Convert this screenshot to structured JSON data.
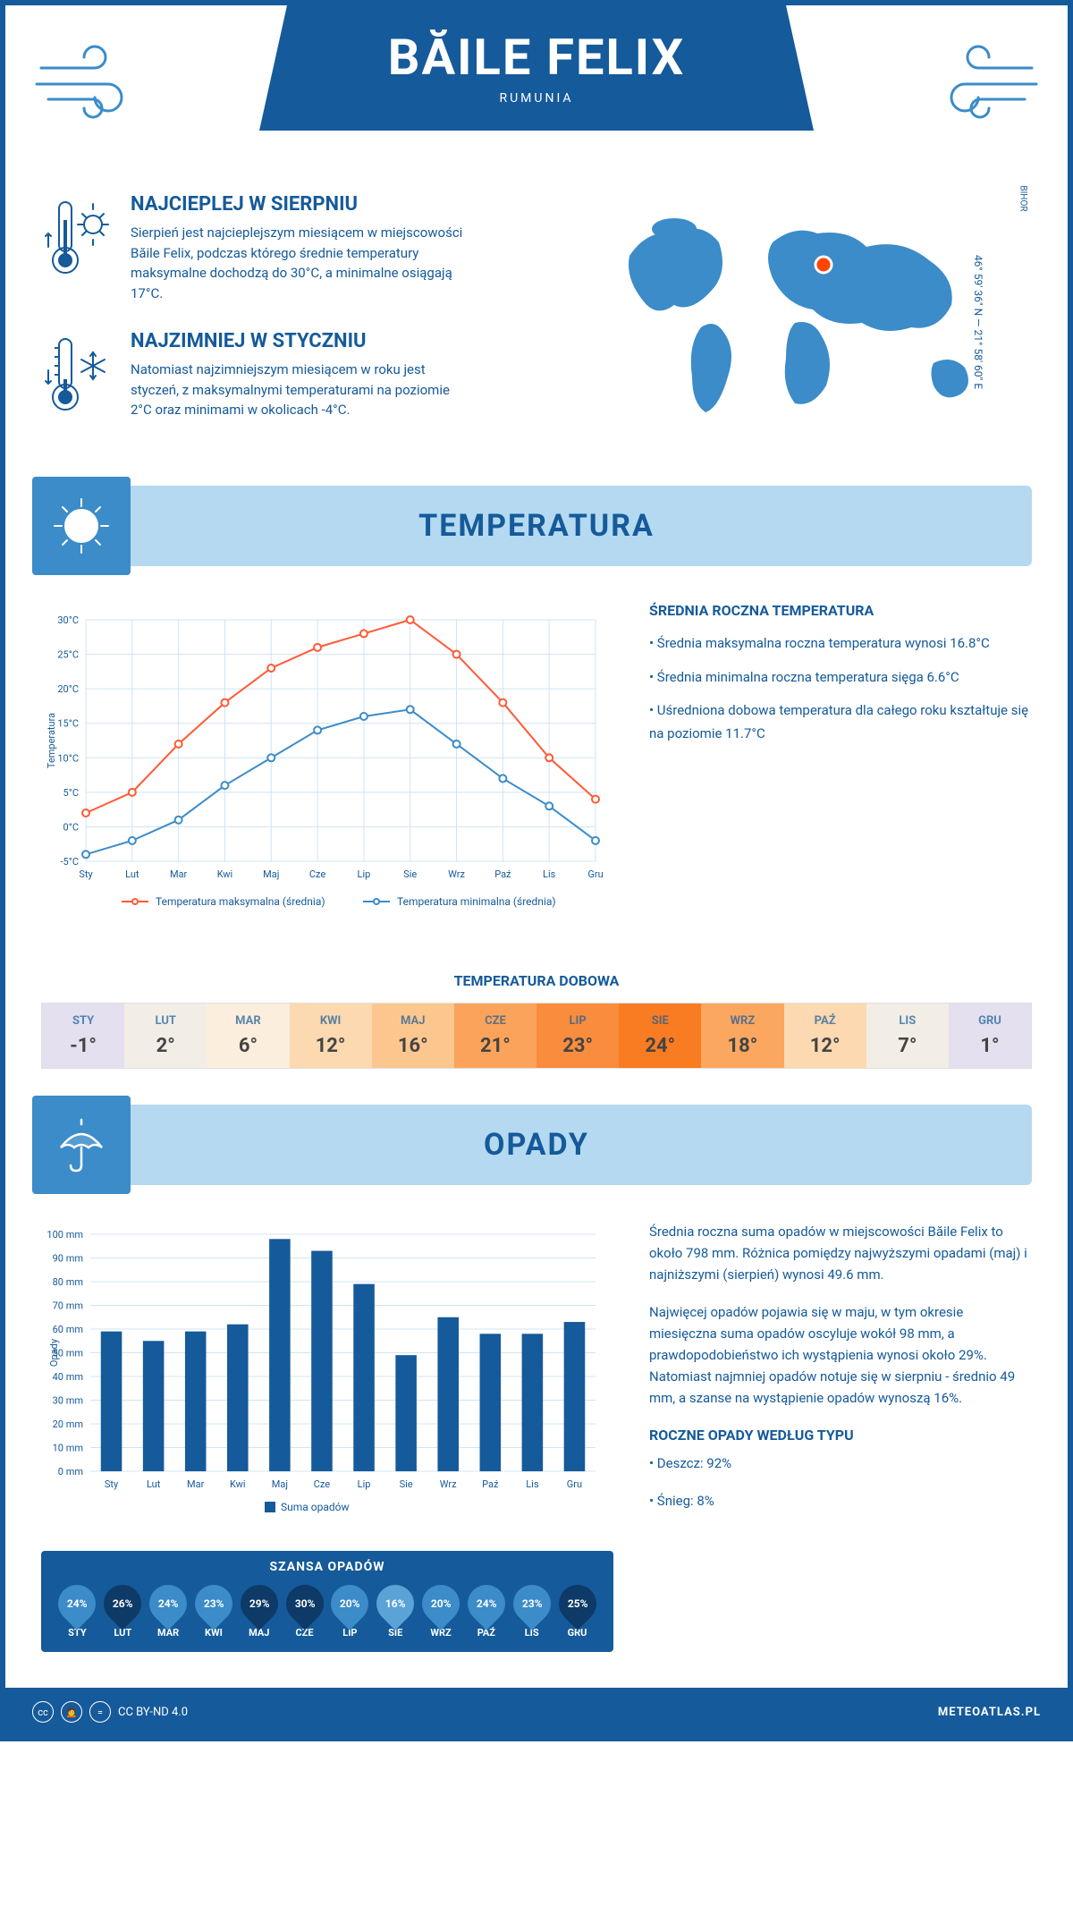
{
  "header": {
    "city": "BĂILE FELIX",
    "country": "RUMUNIA"
  },
  "intro": {
    "hot": {
      "title": "NAJCIEPLEJ W SIERPNIU",
      "text": "Sierpień jest najcieplejszym miesiącem w miejscowości Băile Felix, podczas którego średnie temperatury maksymalne dochodzą do 30°C, a minimalne osiągają 17°C."
    },
    "cold": {
      "title": "NAJZIMNIEJ W STYCZNIU",
      "text": "Natomiast najzimniejszym miesiącem w roku jest styczeń, z maksymalnymi temperaturami na poziomie 2°C oraz minimami w okolicach -4°C."
    },
    "coords": "46° 59' 36\" N — 21° 58' 60\" E",
    "region": "BIHOR"
  },
  "temp_section": {
    "title": "TEMPERATURA",
    "side_title": "ŚREDNIA ROCZNA TEMPERATURA",
    "side_b1": "• Średnia maksymalna roczna temperatura wynosi 16.8°C",
    "side_b2": "• Średnia minimalna roczna temperatura sięga 6.6°C",
    "side_b3": "• Uśredniona dobowa temperatura dla całego roku kształtuje się na poziomie 11.7°C",
    "chart": {
      "type": "line",
      "months": [
        "Sty",
        "Lut",
        "Mar",
        "Kwi",
        "Maj",
        "Cze",
        "Lip",
        "Sie",
        "Wrz",
        "Paź",
        "Lis",
        "Gru"
      ],
      "max": {
        "label": "Temperatura maksymalna (średnia)",
        "color": "#ff5a36",
        "values": [
          2,
          5,
          12,
          18,
          23,
          26,
          28,
          30,
          25,
          18,
          10,
          4
        ]
      },
      "min": {
        "label": "Temperatura minimalna (średnia)",
        "color": "#3b8cc9",
        "values": [
          -4,
          -2,
          1,
          6,
          10,
          14,
          16,
          17,
          12,
          7,
          3,
          -2
        ]
      },
      "ylabel": "Temperatura",
      "ylim": [
        -5,
        30
      ],
      "ytick_step": 5,
      "grid_color": "#d0e4f3",
      "line_width": 2,
      "marker": "circle",
      "marker_size": 4
    },
    "dobowa": {
      "title": "TEMPERATURA DOBOWA",
      "months": [
        "STY",
        "LUT",
        "MAR",
        "KWI",
        "MAJ",
        "CZE",
        "LIP",
        "SIE",
        "WRZ",
        "PAŹ",
        "LIS",
        "GRU"
      ],
      "values": [
        "-1°",
        "2°",
        "6°",
        "12°",
        "16°",
        "21°",
        "23°",
        "24°",
        "18°",
        "12°",
        "7°",
        "1°"
      ],
      "colors": [
        "#e4e0f0",
        "#f2eee6",
        "#fceedd",
        "#fcd9b0",
        "#fcc78e",
        "#fba35a",
        "#f98d3d",
        "#f97c22",
        "#fba75f",
        "#fcd9b0",
        "#f2eee6",
        "#e4e0f0"
      ]
    }
  },
  "opady_section": {
    "title": "OPADY",
    "side_p1": "Średnia roczna suma opadów w miejscowości Băile Felix to około 798 mm. Różnica pomiędzy najwyższymi opadami (maj) i najniższymi (sierpień) wynosi 49.6 mm.",
    "side_p2": "Najwięcej opadów pojawia się w maju, w tym okresie miesięczna suma opadów oscyluje wokół 98 mm, a prawdopodobieństwo ich wystąpienia wynosi około 29%. Natomiast najmniej opadów notuje się w sierpniu - średnio 49 mm, a szanse na wystąpienie opadów wynoszą 16%.",
    "type_title": "ROCZNE OPADY WEDŁUG TYPU",
    "type_b1": "• Deszcz: 92%",
    "type_b2": "• Śnieg: 8%",
    "chart": {
      "type": "bar",
      "months": [
        "Sty",
        "Lut",
        "Mar",
        "Kwi",
        "Maj",
        "Cze",
        "Lip",
        "Sie",
        "Wrz",
        "Paź",
        "Lis",
        "Gru"
      ],
      "values": [
        59,
        55,
        59,
        62,
        98,
        93,
        79,
        49,
        65,
        58,
        58,
        63
      ],
      "label": "Suma opadów",
      "color": "#155a9a",
      "ylabel": "Opady",
      "ylim": [
        0,
        100
      ],
      "ytick_step": 10,
      "grid_color": "#d0e4f3",
      "bar_width": 0.5
    },
    "szansa": {
      "title": "SZANSA OPADÓW",
      "months": [
        "STY",
        "LUT",
        "MAR",
        "KWI",
        "MAJ",
        "CZE",
        "LIP",
        "SIE",
        "WRZ",
        "PAŹ",
        "LIS",
        "GRU"
      ],
      "values": [
        "24%",
        "26%",
        "24%",
        "23%",
        "29%",
        "30%",
        "20%",
        "16%",
        "20%",
        "24%",
        "23%",
        "25%"
      ],
      "colors": [
        "#3b8cc9",
        "#0d3a66",
        "#3b8cc9",
        "#3b8cc9",
        "#0d3a66",
        "#0d3a66",
        "#3b8cc9",
        "#5aa3d6",
        "#3b8cc9",
        "#3b8cc9",
        "#3b8cc9",
        "#0d3a66"
      ]
    }
  },
  "footer": {
    "license": "CC BY-ND 4.0",
    "site": "METEOATLAS.PL"
  }
}
